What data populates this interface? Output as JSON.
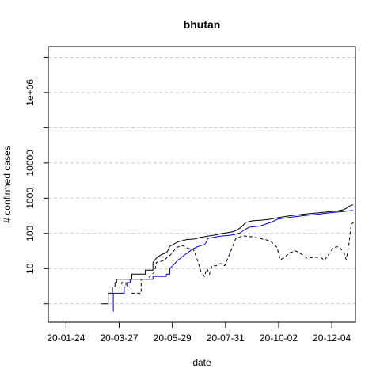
{
  "chart_data": {
    "type": "line",
    "title": "bhutan",
    "xlabel": "date",
    "ylabel": "# confirmed cases",
    "y_scale": "log10",
    "ylim": [
      0.3,
      20000000
    ],
    "xlim": [
      "2020-01-03",
      "2021-01-01"
    ],
    "x_ticks": [
      "20-01-24",
      "20-03-27",
      "20-05-29",
      "20-07-31",
      "20-10-02",
      "20-12-04"
    ],
    "y_ticks": [
      {
        "value": 10,
        "label": "10"
      },
      {
        "value": 100,
        "label": "100"
      },
      {
        "value": 1000,
        "label": "1000"
      },
      {
        "value": 10000,
        "label": "10000"
      },
      {
        "value": 1000000,
        "label": "1e+06"
      }
    ],
    "grid": true,
    "series": [
      {
        "style": "solid",
        "color": "#000000",
        "points": [
          [
            "2020-03-06",
            1
          ],
          [
            "2020-03-14",
            1
          ],
          [
            "2020-03-14",
            2
          ],
          [
            "2020-03-19",
            2
          ],
          [
            "2020-03-19",
            3
          ],
          [
            "2020-03-22",
            3
          ],
          [
            "2020-03-22",
            4
          ],
          [
            "2020-03-24",
            4
          ],
          [
            "2020-03-24",
            5
          ],
          [
            "2020-04-11",
            5
          ],
          [
            "2020-04-11",
            7
          ],
          [
            "2020-04-27",
            7
          ],
          [
            "2020-04-27",
            9
          ],
          [
            "2020-05-06",
            9
          ],
          [
            "2020-05-06",
            15
          ],
          [
            "2020-05-11",
            21
          ],
          [
            "2020-05-16",
            25
          ],
          [
            "2020-05-21",
            28
          ],
          [
            "2020-05-23",
            30
          ],
          [
            "2020-05-26",
            43
          ],
          [
            "2020-05-31",
            50
          ],
          [
            "2020-06-03",
            55
          ],
          [
            "2020-06-06",
            59
          ],
          [
            "2020-06-10",
            62
          ],
          [
            "2020-06-15",
            67
          ],
          [
            "2020-06-20",
            68
          ],
          [
            "2020-06-25",
            70
          ],
          [
            "2020-07-01",
            77
          ],
          [
            "2020-07-10",
            84
          ],
          [
            "2020-07-20",
            91
          ],
          [
            "2020-07-28",
            101
          ],
          [
            "2020-08-03",
            105
          ],
          [
            "2020-08-10",
            113
          ],
          [
            "2020-08-17",
            140
          ],
          [
            "2020-08-21",
            170
          ],
          [
            "2020-08-24",
            205
          ],
          [
            "2020-09-01",
            227
          ],
          [
            "2020-09-10",
            235
          ],
          [
            "2020-09-20",
            248
          ],
          [
            "2020-10-01",
            278
          ],
          [
            "2020-10-15",
            316
          ],
          [
            "2020-11-01",
            352
          ],
          [
            "2020-11-15",
            378
          ],
          [
            "2020-12-01",
            410
          ],
          [
            "2020-12-10",
            430
          ],
          [
            "2020-12-18",
            470
          ],
          [
            "2020-12-22",
            530
          ],
          [
            "2020-12-25",
            600
          ],
          [
            "2020-12-29",
            650
          ]
        ]
      },
      {
        "style": "solid",
        "color": "#0000cc",
        "points": [
          [
            "2020-03-20",
            0.6
          ],
          [
            "2020-03-20",
            2
          ],
          [
            "2020-04-02",
            2
          ],
          [
            "2020-04-02",
            3
          ],
          [
            "2020-04-06",
            3
          ],
          [
            "2020-04-06",
            4
          ],
          [
            "2020-04-09",
            4
          ],
          [
            "2020-04-09",
            5
          ],
          [
            "2020-05-06",
            5
          ],
          [
            "2020-05-06",
            6
          ],
          [
            "2020-05-22",
            6
          ],
          [
            "2020-05-22",
            7
          ],
          [
            "2020-05-26",
            7
          ],
          [
            "2020-05-26",
            10
          ],
          [
            "2020-06-01",
            14
          ],
          [
            "2020-06-04",
            17
          ],
          [
            "2020-06-08",
            20
          ],
          [
            "2020-06-12",
            24
          ],
          [
            "2020-06-17",
            29
          ],
          [
            "2020-06-20",
            33
          ],
          [
            "2020-06-24",
            38
          ],
          [
            "2020-06-28",
            42
          ],
          [
            "2020-07-02",
            45
          ],
          [
            "2020-07-06",
            48
          ],
          [
            "2020-07-08",
            55
          ],
          [
            "2020-07-10",
            72
          ],
          [
            "2020-07-20",
            80
          ],
          [
            "2020-07-28",
            85
          ],
          [
            "2020-08-03",
            87
          ],
          [
            "2020-08-10",
            92
          ],
          [
            "2020-08-17",
            102
          ],
          [
            "2020-08-22",
            125
          ],
          [
            "2020-08-28",
            150
          ],
          [
            "2020-09-10",
            162
          ],
          [
            "2020-09-20",
            195
          ],
          [
            "2020-09-25",
            215
          ],
          [
            "2020-10-01",
            255
          ],
          [
            "2020-10-15",
            285
          ],
          [
            "2020-11-01",
            318
          ],
          [
            "2020-11-15",
            345
          ],
          [
            "2020-12-01",
            382
          ],
          [
            "2020-12-15",
            410
          ],
          [
            "2020-12-29",
            450
          ]
        ]
      },
      {
        "style": "dashed",
        "color": "#000000",
        "points": [
          [
            "2020-03-20",
            3
          ],
          [
            "2020-03-30",
            3
          ],
          [
            "2020-03-30",
            4
          ],
          [
            "2020-04-04",
            4
          ],
          [
            "2020-04-04",
            3
          ],
          [
            "2020-04-10",
            3
          ],
          [
            "2020-04-10",
            2
          ],
          [
            "2020-04-22",
            2
          ],
          [
            "2020-04-22",
            5
          ],
          [
            "2020-05-02",
            5
          ],
          [
            "2020-05-02",
            6
          ],
          [
            "2020-05-08",
            8
          ],
          [
            "2020-05-10",
            15
          ],
          [
            "2020-05-20",
            17
          ],
          [
            "2020-05-22",
            20
          ],
          [
            "2020-05-27",
            25
          ],
          [
            "2020-06-03",
            40
          ],
          [
            "2020-06-10",
            45
          ],
          [
            "2020-06-16",
            38
          ],
          [
            "2020-06-23",
            35
          ],
          [
            "2020-06-27",
            20
          ],
          [
            "2020-07-02",
            8
          ],
          [
            "2020-07-06",
            6
          ],
          [
            "2020-07-09",
            10
          ],
          [
            "2020-07-12",
            7
          ],
          [
            "2020-07-15",
            12
          ],
          [
            "2020-07-20",
            12
          ],
          [
            "2020-07-25",
            14
          ],
          [
            "2020-07-30",
            12
          ],
          [
            "2020-08-03",
            20
          ],
          [
            "2020-08-08",
            40
          ],
          [
            "2020-08-12",
            70
          ],
          [
            "2020-08-20",
            85
          ],
          [
            "2020-09-01",
            80
          ],
          [
            "2020-09-12",
            70
          ],
          [
            "2020-09-22",
            62
          ],
          [
            "2020-09-30",
            40
          ],
          [
            "2020-10-04",
            18
          ],
          [
            "2020-10-08",
            20
          ],
          [
            "2020-10-15",
            28
          ],
          [
            "2020-10-22",
            32
          ],
          [
            "2020-10-30",
            25
          ],
          [
            "2020-11-04",
            20
          ],
          [
            "2020-11-15",
            21
          ],
          [
            "2020-11-22",
            20
          ],
          [
            "2020-11-25",
            17
          ],
          [
            "2020-11-30",
            25
          ],
          [
            "2020-12-06",
            40
          ],
          [
            "2020-12-12",
            42
          ],
          [
            "2020-12-18",
            30
          ],
          [
            "2020-12-21",
            18
          ],
          [
            "2020-12-24",
            45
          ],
          [
            "2020-12-27",
            180
          ],
          [
            "2020-12-31",
            220
          ]
        ]
      }
    ]
  }
}
